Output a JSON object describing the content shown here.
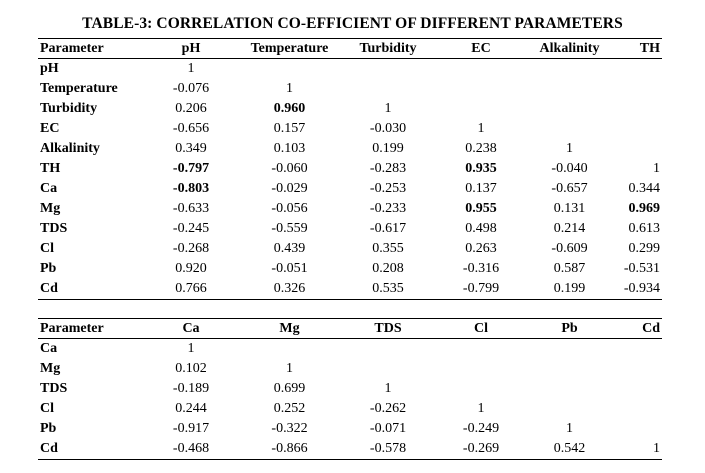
{
  "title": "TABLE-3: CORRELATION CO-EFFICIENT OF DIFFERENT PARAMETERS",
  "table1": {
    "headers": [
      "Parameter",
      "pH",
      "Temperature",
      "Turbidity",
      "EC",
      "Alkalinity",
      "TH"
    ],
    "rows": [
      {
        "label": "pH",
        "cells": [
          "1",
          "",
          "",
          "",
          "",
          ""
        ]
      },
      {
        "label": "Temperature",
        "cells": [
          "-0.076",
          "1",
          "",
          "",
          "",
          ""
        ]
      },
      {
        "label": "Turbidity",
        "cells": [
          "0.206",
          "0.960",
          "1",
          "",
          "",
          ""
        ]
      },
      {
        "label": "EC",
        "cells": [
          "-0.656",
          "0.157",
          "-0.030",
          "1",
          "",
          ""
        ]
      },
      {
        "label": "Alkalinity",
        "cells": [
          "0.349",
          "0.103",
          "0.199",
          "0.238",
          "1",
          ""
        ]
      },
      {
        "label": "TH",
        "cells": [
          "-0.797",
          "-0.060",
          "-0.283",
          "0.935",
          "-0.040",
          "1"
        ]
      },
      {
        "label": "Ca",
        "cells": [
          "-0.803",
          "-0.029",
          "-0.253",
          "0.137",
          "-0.657",
          "0.344"
        ]
      },
      {
        "label": "Mg",
        "cells": [
          "-0.633",
          "-0.056",
          "-0.233",
          "0.955",
          "0.131",
          "0.969"
        ]
      },
      {
        "label": "TDS",
        "cells": [
          "-0.245",
          "-0.559",
          "-0.617",
          "0.498",
          "0.214",
          "0.613"
        ]
      },
      {
        "label": "Cl",
        "cells": [
          "-0.268",
          "0.439",
          "0.355",
          "0.263",
          "-0.609",
          "0.299"
        ]
      },
      {
        "label": "Pb",
        "cells": [
          "0.920",
          "-0.051",
          "0.208",
          "-0.316",
          "0.587",
          "-0.531"
        ]
      },
      {
        "label": "Cd",
        "cells": [
          "0.766",
          "0.326",
          "0.535",
          "-0.799",
          "0.199",
          "-0.934"
        ]
      }
    ]
  },
  "table2": {
    "headers": [
      "Parameter",
      "Ca",
      "Mg",
      "TDS",
      "Cl",
      "Pb",
      "Cd"
    ],
    "rows": [
      {
        "label": "Ca",
        "cells": [
          "1",
          "",
          "",
          "",
          "",
          ""
        ]
      },
      {
        "label": "Mg",
        "cells": [
          "0.102",
          "1",
          "",
          "",
          "",
          ""
        ]
      },
      {
        "label": "TDS",
        "cells": [
          "-0.189",
          "0.699",
          "1",
          "",
          "",
          ""
        ]
      },
      {
        "label": "Cl",
        "cells": [
          "0.244",
          "0.252",
          "-0.262",
          "1",
          "",
          ""
        ]
      },
      {
        "label": "Pb",
        "cells": [
          "-0.917",
          "-0.322",
          "-0.071",
          "-0.249",
          "1",
          ""
        ]
      },
      {
        "label": "Cd",
        "cells": [
          "-0.468",
          "-0.866",
          "-0.578",
          "-0.269",
          "0.542",
          "1"
        ]
      }
    ]
  }
}
